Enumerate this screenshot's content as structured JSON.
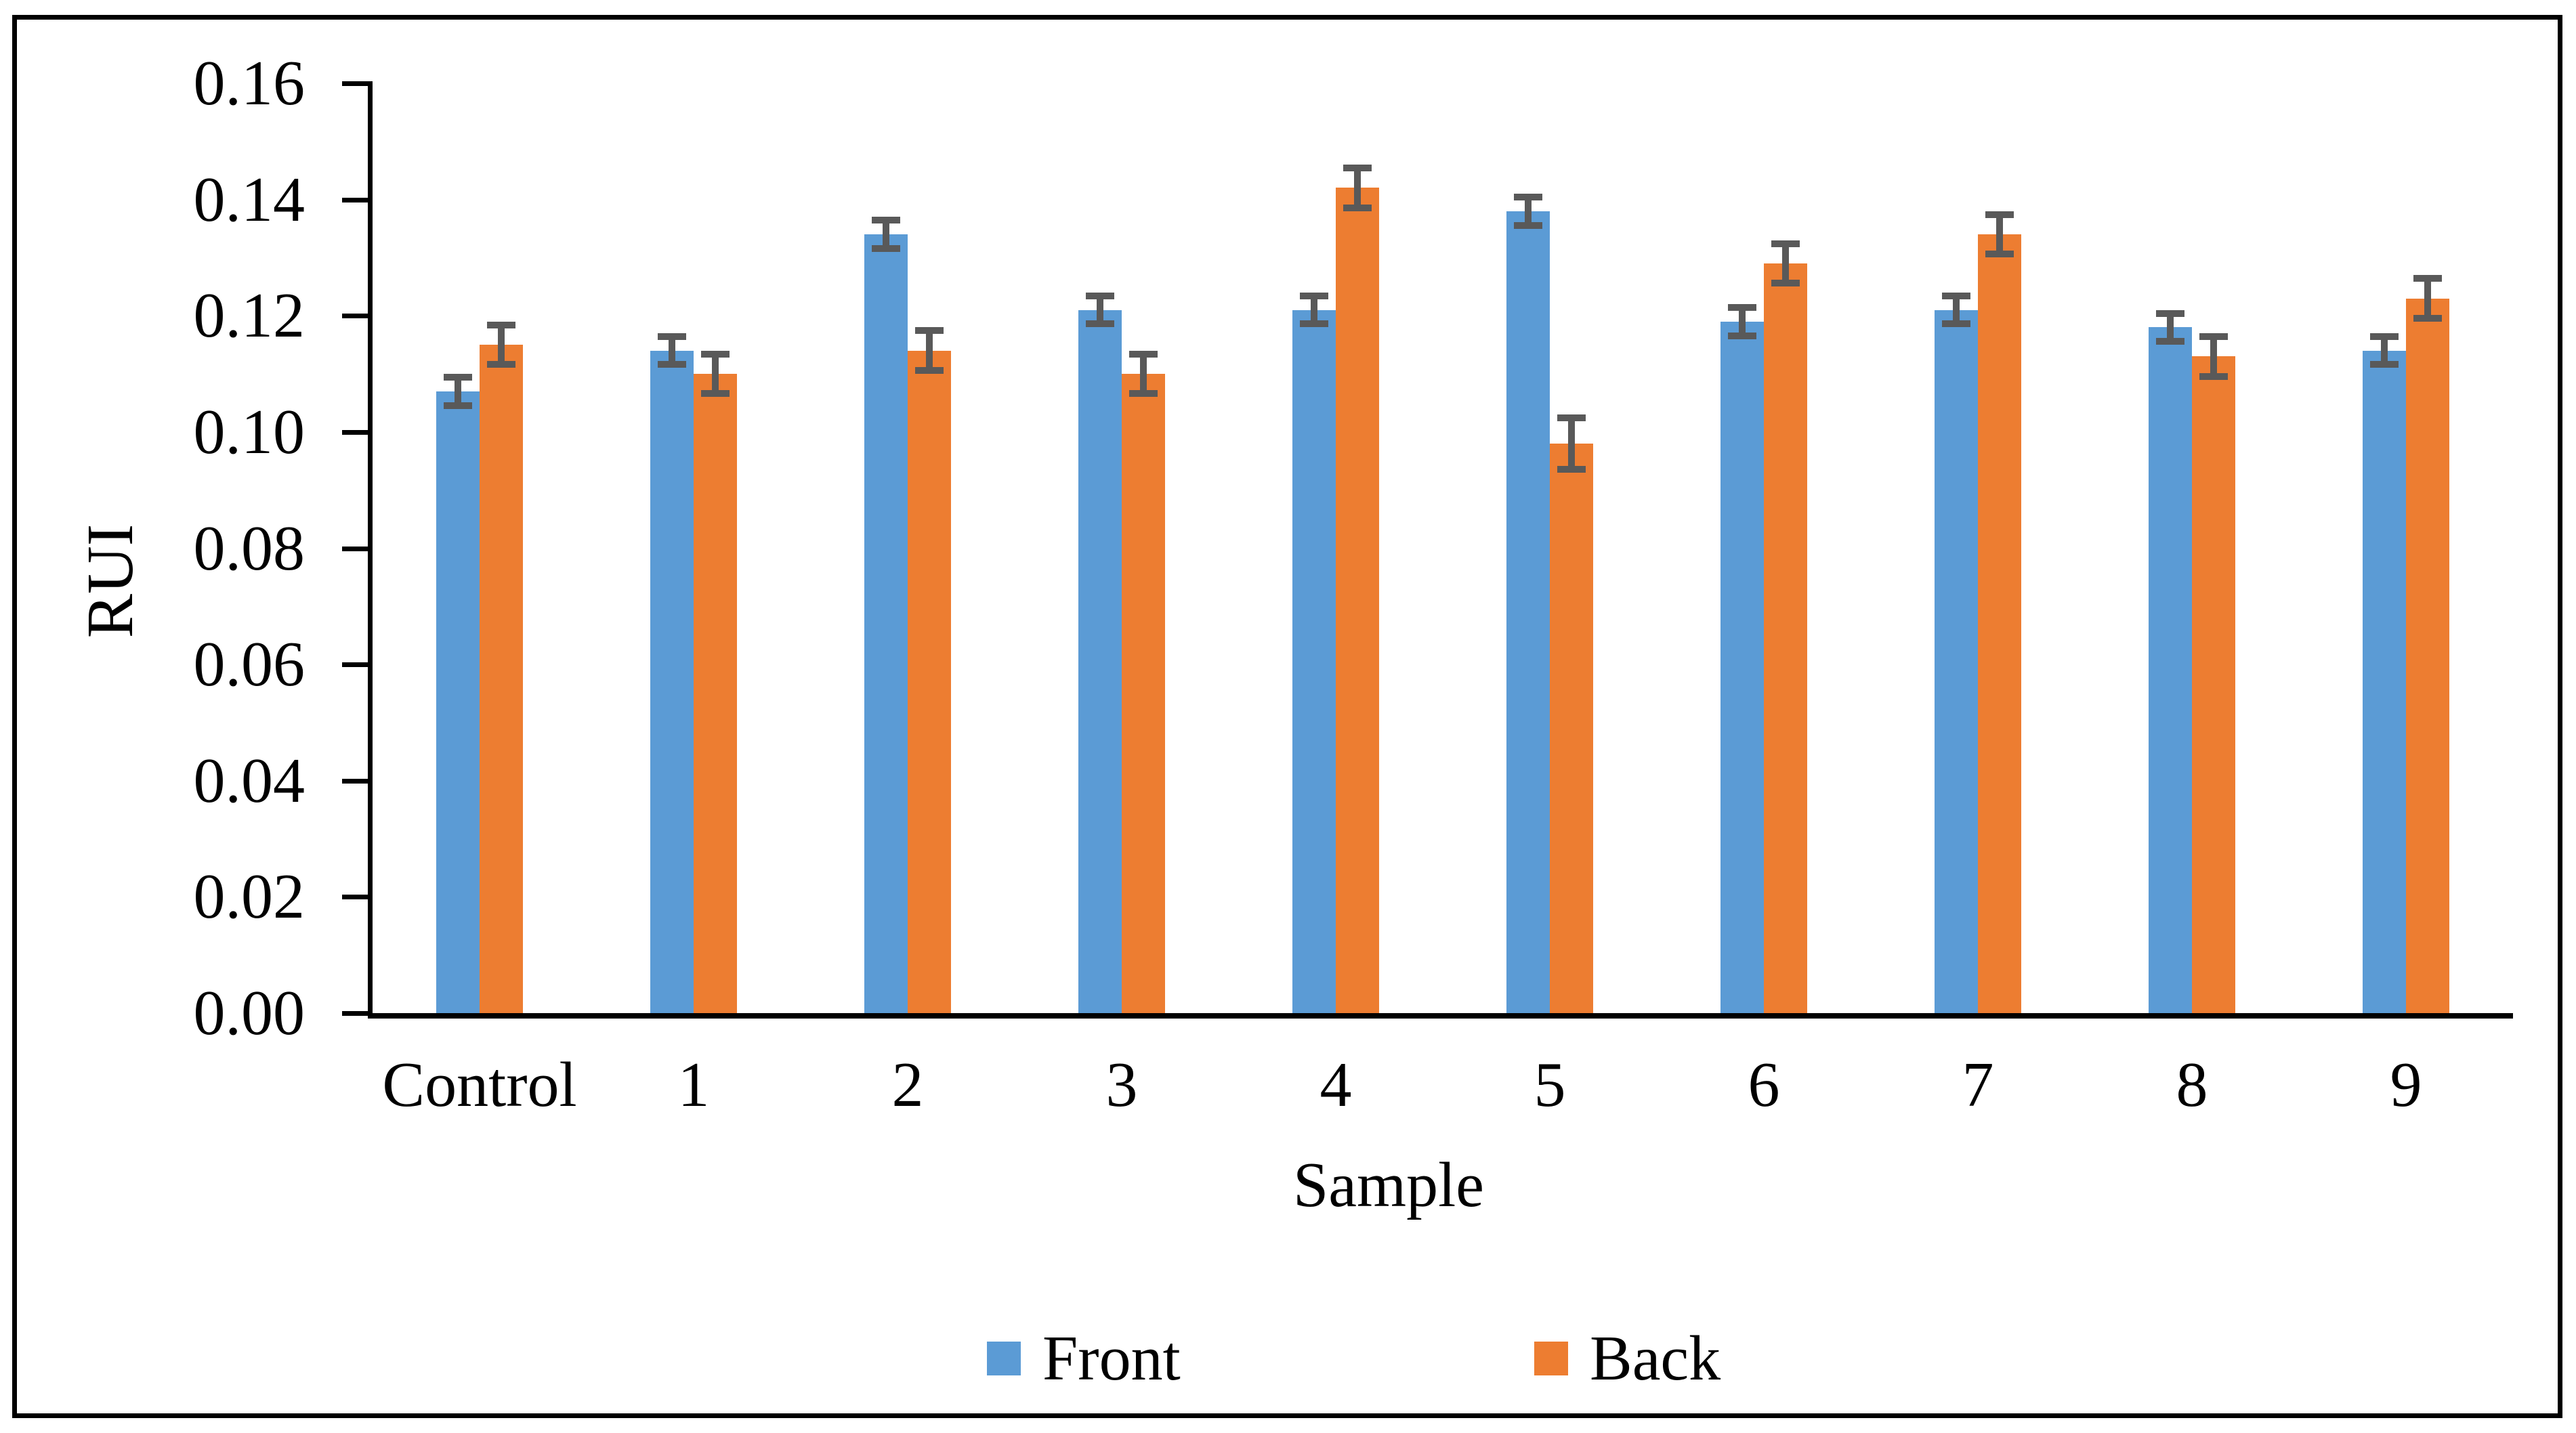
{
  "figure": {
    "background_color": "#ffffff",
    "border_color": "#000000"
  },
  "chart_data": {
    "type": "bar",
    "title": "",
    "xlabel": "Sample",
    "ylabel": "RUI",
    "categories": [
      "Control",
      "1",
      "2",
      "3",
      "4",
      "5",
      "6",
      "7",
      "8",
      "9"
    ],
    "series": [
      {
        "name": "Front",
        "color": "#5B9BD5",
        "values": [
          0.107,
          0.114,
          0.134,
          0.121,
          0.121,
          0.138,
          0.119,
          0.121,
          0.118,
          0.114
        ],
        "errors": [
          0.003,
          0.003,
          0.003,
          0.003,
          0.003,
          0.003,
          0.003,
          0.003,
          0.003,
          0.003
        ]
      },
      {
        "name": "Back",
        "color": "#ED7D31",
        "values": [
          0.115,
          0.11,
          0.114,
          0.11,
          0.142,
          0.098,
          0.129,
          0.134,
          0.113,
          0.123
        ],
        "errors": [
          0.004,
          0.004,
          0.004,
          0.004,
          0.004,
          0.005,
          0.004,
          0.004,
          0.004,
          0.004
        ]
      }
    ],
    "ylim": [
      0.0,
      0.16
    ],
    "ytick_step": 0.02,
    "ytick_labels": [
      "0.00",
      "0.02",
      "0.04",
      "0.06",
      "0.08",
      "0.10",
      "0.12",
      "0.14",
      "0.16"
    ],
    "error_bar_color": "#595959",
    "grid": false,
    "legend_position": "bottom"
  },
  "legend": {
    "items": [
      {
        "label": "Front",
        "color": "#5B9BD5"
      },
      {
        "label": "Back",
        "color": "#ED7D31"
      }
    ]
  }
}
